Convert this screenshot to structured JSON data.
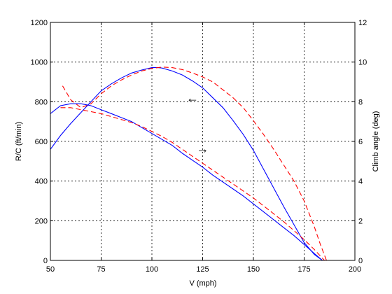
{
  "chart_data": {
    "type": "line",
    "title": "",
    "xlabel": "V (mph)",
    "ylabel": "R/C (ft/min)",
    "y2label": "Climb angle (deg)",
    "xlim": [
      50,
      200
    ],
    "ylim": [
      0,
      1200
    ],
    "y2lim": [
      0,
      12
    ],
    "xticks": [
      "50",
      "75",
      "100",
      "125",
      "150",
      "175",
      "200"
    ],
    "yticks": [
      "0",
      "200",
      "400",
      "600",
      "800",
      "1000",
      "1200"
    ],
    "y2ticks": [
      "0",
      "2",
      "4",
      "6",
      "8",
      "10",
      "12"
    ],
    "grid": true,
    "annotations": [
      {
        "text": "←",
        "x": 120,
        "y": 815,
        "axis": "left",
        "meaning": "arrow pointing to R/C curve"
      },
      {
        "text": "→",
        "x": 125,
        "y": 560,
        "axis": "left",
        "meaning": "arrow pointing to climb angle curve"
      }
    ],
    "series": [
      {
        "axis": "left",
        "color": "#0000ff",
        "dash": "solid",
        "x": [
          50,
          55,
          60,
          65,
          70,
          75,
          80,
          85,
          90,
          95,
          100,
          103,
          105,
          110,
          115,
          120,
          125,
          130,
          135,
          140,
          145,
          150,
          155,
          160,
          165,
          170,
          175,
          180,
          184
        ],
        "y": [
          560,
          630,
          690,
          745,
          800,
          855,
          890,
          920,
          945,
          960,
          972,
          972,
          970,
          955,
          935,
          905,
          870,
          820,
          770,
          705,
          635,
          555,
          460,
          365,
          270,
          180,
          90,
          30,
          0
        ]
      },
      {
        "axis": "left",
        "color": "#ff0000",
        "dash": "dashed",
        "x": [
          56,
          60,
          65,
          70,
          75,
          80,
          85,
          90,
          95,
          100,
          105,
          110,
          115,
          120,
          125,
          130,
          135,
          140,
          145,
          150,
          155,
          160,
          165,
          170,
          175,
          180,
          183,
          186
        ],
        "y": [
          880,
          810,
          770,
          790,
          840,
          880,
          910,
          935,
          955,
          968,
          975,
          972,
          962,
          945,
          925,
          900,
          860,
          820,
          770,
          705,
          635,
          560,
          480,
          400,
          300,
          170,
          80,
          0
        ]
      },
      {
        "axis": "right",
        "color": "#0000ff",
        "dash": "solid",
        "x": [
          50,
          55,
          60,
          65,
          70,
          75,
          80,
          85,
          90,
          95,
          100,
          105,
          110,
          115,
          120,
          125,
          130,
          135,
          140,
          145,
          150,
          155,
          160,
          165,
          170,
          175,
          180,
          184
        ],
        "y": [
          7.4,
          7.8,
          7.9,
          7.9,
          7.8,
          7.6,
          7.4,
          7.2,
          7.0,
          6.7,
          6.4,
          6.1,
          5.8,
          5.4,
          5.05,
          4.7,
          4.3,
          3.95,
          3.6,
          3.25,
          2.85,
          2.45,
          2.05,
          1.65,
          1.25,
          0.8,
          0.35,
          0.0
        ]
      },
      {
        "axis": "right",
        "color": "#ff0000",
        "dash": "dashed",
        "x": [
          55,
          60,
          65,
          70,
          75,
          80,
          85,
          90,
          95,
          100,
          105,
          110,
          115,
          120,
          125,
          130,
          135,
          140,
          145,
          150,
          155,
          160,
          165,
          170,
          175,
          180,
          185
        ],
        "y": [
          7.7,
          7.7,
          7.6,
          7.5,
          7.4,
          7.25,
          7.1,
          6.95,
          6.75,
          6.5,
          6.25,
          5.95,
          5.6,
          5.25,
          4.9,
          4.55,
          4.2,
          3.85,
          3.5,
          3.15,
          2.75,
          2.35,
          1.95,
          1.5,
          1.05,
          0.55,
          0.0
        ]
      }
    ]
  }
}
